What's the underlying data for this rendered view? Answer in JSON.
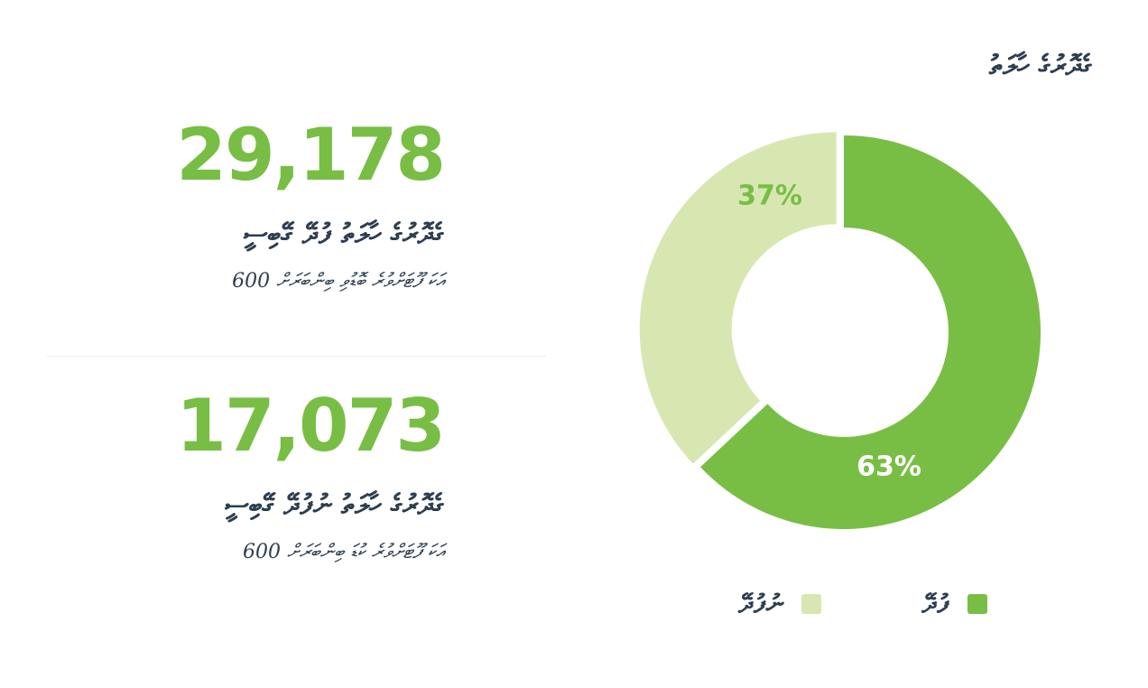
{
  "stats": [
    {
      "value": "29,178",
      "label": "ގެދޮރުގެ ހާލަތު ފުދޭ ގޭބިސީ",
      "note": "އަކަ ފޫޓަށްވުރެ ބޮޑުވި ބިންބަރަށް 600"
    },
    {
      "value": "17,073",
      "label": "ގެދޮރުގެ ހާލަތު ނުފުދޭ ގޭބިސީ",
      "note": "އަކަ ފޫޓަށްވުރެ ކުޑަ ބިންބަރަށް 600"
    }
  ],
  "chart_data": {
    "type": "donut",
    "title": "ގެދޮރުގެ ހާލަތު",
    "categories": [
      "ފުދޭ",
      "ނުފުދޭ"
    ],
    "values": [
      63,
      37
    ],
    "value_labels": [
      "63%",
      "37%"
    ],
    "colors": [
      "#78be45",
      "#d8e7b2"
    ]
  }
}
